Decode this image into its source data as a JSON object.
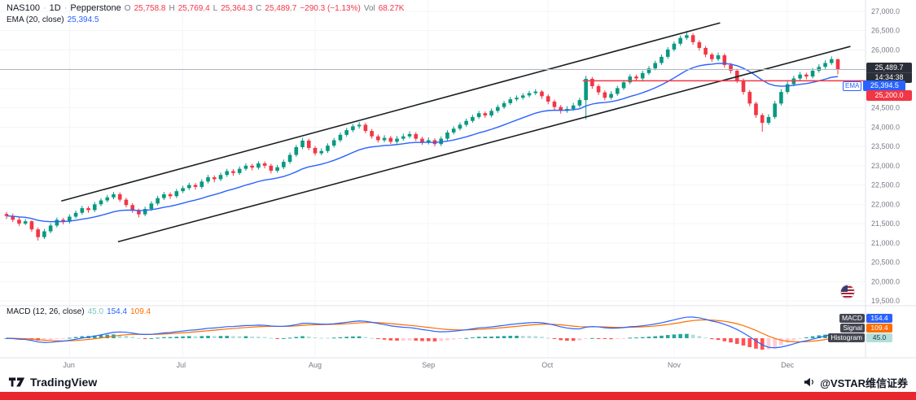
{
  "header": {
    "symbol": "NAS100",
    "sep": "·",
    "interval": "1D",
    "broker": "Pepperstone",
    "o_label": "O",
    "o": "25,758.8",
    "h_label": "H",
    "h": "25,769.4",
    "l_label": "L",
    "l": "25,364.3",
    "c_label": "C",
    "c": "25,489.7",
    "change": "−290.3 (−1.13%)",
    "vol_label": "Vol",
    "vol": "68.27K",
    "ema_label": "EMA (20, close)",
    "ema_value": "25,394.5"
  },
  "price_scale": {
    "last_price": "25,489.7",
    "countdown": "14:34:38",
    "ema_tag": "EMA",
    "ema_value": "25,394.5",
    "level": "25,200.0"
  },
  "macd_panel": {
    "title": "MACD (12, 26, close)",
    "hist_value": "45.0",
    "macd_value": "154.4",
    "signal_value": "109.4",
    "badges": {
      "macd_label": "MACD",
      "macd": "154.4",
      "signal_label": "Signal",
      "signal": "109.4",
      "hist_label": "Histogram",
      "hist": "45.0"
    }
  },
  "footer": {
    "brand": "TradingView",
    "handle": "@VSTAR维信证券"
  },
  "chart_data": {
    "type": "candlestick",
    "title": "NAS100 1D Pepperstone with EMA(20) channel and MACD(12,26,9)",
    "x_unit": "trading-day index (late May to mid December)",
    "price_range": [
      19500,
      27250
    ],
    "grid": true,
    "colors": {
      "up": "#089981",
      "down": "#f23645",
      "ema": "#2962ff",
      "hline": "#f23645",
      "macd_line": "#2962ff",
      "signal_line": "#ff6d00",
      "hist_pos_grow": "#26a69a",
      "hist_pos_fall": "#b2dfdb",
      "hist_neg_grow": "#ffcdd2",
      "hist_neg_fall": "#ff5252",
      "trendline": "#1c2022",
      "price_line": "#b2b5be"
    },
    "price_ticks": [
      {
        "value": 27000,
        "label": "27,000.0"
      },
      {
        "value": 26500,
        "label": "26,500.0"
      },
      {
        "value": 26000,
        "label": "26,000.0"
      },
      {
        "value": 25500,
        "label": "25,500.0"
      },
      {
        "value": 25000,
        "label": "25,000.0"
      },
      {
        "value": 24500,
        "label": "24,500.0"
      },
      {
        "value": 24000,
        "label": "24,000.0"
      },
      {
        "value": 23500,
        "label": "23,500.0"
      },
      {
        "value": 23000,
        "label": "23,000.0"
      },
      {
        "value": 22500,
        "label": "22,500.0"
      },
      {
        "value": 22000,
        "label": "22,000.0"
      },
      {
        "value": 21500,
        "label": "21,500.0"
      },
      {
        "value": 21000,
        "label": "21,000.0"
      },
      {
        "value": 20500,
        "label": "20,500.0"
      },
      {
        "value": 20000,
        "label": "20,000.0"
      },
      {
        "value": 19500,
        "label": "19,500.0"
      }
    ],
    "months": [
      {
        "label": "Jun",
        "index": 10
      },
      {
        "label": "Jul",
        "index": 28
      },
      {
        "label": "Aug",
        "index": 49
      },
      {
        "label": "Sep",
        "index": 67
      },
      {
        "label": "Oct",
        "index": 86
      },
      {
        "label": "Nov",
        "index": 106
      },
      {
        "label": "Dec",
        "index": 124
      }
    ],
    "ema_period": 20,
    "price_line": 25489.7,
    "hline": {
      "price": 25200,
      "from_index": 91.5
    },
    "trendlines": [
      {
        "name": "channel-upper",
        "from": {
          "index": 8.7,
          "price": 22085
        },
        "to": {
          "index": 113.3,
          "price": 26700
        }
      },
      {
        "name": "channel-lower",
        "from": {
          "index": 17.7,
          "price": 21030
        },
        "to": {
          "index": 134,
          "price": 26090
        }
      }
    ],
    "macd_params": {
      "fast": 12,
      "slow": 26,
      "signal": 9
    },
    "last_values": {
      "open": 25758.8,
      "high": 25769.4,
      "low": 25364.3,
      "close": 25489.7,
      "change": -290.3,
      "change_pct": -1.13,
      "volume": "68.27K",
      "ema20": 25394.5,
      "macd": 154.4,
      "signal": 109.4,
      "histogram": 45.0
    },
    "candles": [
      [
        21750,
        21800,
        21620,
        21700
      ],
      [
        21700,
        21760,
        21540,
        21600
      ],
      [
        21600,
        21660,
        21440,
        21500
      ],
      [
        21500,
        21620,
        21460,
        21560
      ],
      [
        21560,
        21590,
        21290,
        21350
      ],
      [
        21350,
        21400,
        21060,
        21150
      ],
      [
        21150,
        21360,
        21100,
        21300
      ],
      [
        21300,
        21510,
        21250,
        21450
      ],
      [
        21450,
        21660,
        21400,
        21600
      ],
      [
        21600,
        21650,
        21480,
        21550
      ],
      [
        21550,
        21740,
        21500,
        21680
      ],
      [
        21680,
        21840,
        21630,
        21780
      ],
      [
        21780,
        21960,
        21730,
        21900
      ],
      [
        21900,
        21950,
        21780,
        21850
      ],
      [
        21850,
        22060,
        21800,
        22000
      ],
      [
        22000,
        22160,
        21950,
        22100
      ],
      [
        22100,
        22240,
        22050,
        22180
      ],
      [
        22180,
        22320,
        22130,
        22260
      ],
      [
        22260,
        22310,
        22060,
        22120
      ],
      [
        22120,
        22170,
        21920,
        21980
      ],
      [
        21980,
        22030,
        21780,
        21840
      ],
      [
        21840,
        21890,
        21660,
        21740
      ],
      [
        21740,
        21940,
        21690,
        21880
      ],
      [
        21880,
        22080,
        21830,
        22020
      ],
      [
        22020,
        22220,
        21970,
        22160
      ],
      [
        22160,
        22320,
        22110,
        22260
      ],
      [
        22260,
        22310,
        22140,
        22210
      ],
      [
        22210,
        22400,
        22160,
        22340
      ],
      [
        22340,
        22480,
        22290,
        22420
      ],
      [
        22420,
        22560,
        22370,
        22500
      ],
      [
        22500,
        22550,
        22380,
        22450
      ],
      [
        22450,
        22650,
        22400,
        22590
      ],
      [
        22590,
        22760,
        22540,
        22700
      ],
      [
        22700,
        22750,
        22570,
        22650
      ],
      [
        22650,
        22820,
        22600,
        22760
      ],
      [
        22760,
        22920,
        22710,
        22860
      ],
      [
        22860,
        22910,
        22740,
        22810
      ],
      [
        22810,
        22980,
        22760,
        22920
      ],
      [
        22920,
        23060,
        22870,
        23000
      ],
      [
        23000,
        23050,
        22880,
        22950
      ],
      [
        22950,
        23120,
        22900,
        23060
      ],
      [
        23060,
        23110,
        22930,
        23000
      ],
      [
        23000,
        23050,
        22800,
        22870
      ],
      [
        22870,
        23020,
        22820,
        22960
      ],
      [
        22960,
        23160,
        22910,
        23100
      ],
      [
        23100,
        23340,
        23050,
        23280
      ],
      [
        23280,
        23540,
        23230,
        23480
      ],
      [
        23480,
        23720,
        23430,
        23650
      ],
      [
        23650,
        23700,
        23400,
        23460
      ],
      [
        23460,
        23510,
        23260,
        23320
      ],
      [
        23320,
        23450,
        23270,
        23380
      ],
      [
        23380,
        23580,
        23330,
        23520
      ],
      [
        23520,
        23720,
        23470,
        23660
      ],
      [
        23660,
        23860,
        23610,
        23800
      ],
      [
        23800,
        23980,
        23750,
        23920
      ],
      [
        23920,
        24080,
        23870,
        24020
      ],
      [
        24020,
        24130,
        23960,
        24060
      ],
      [
        24060,
        24110,
        23840,
        23900
      ],
      [
        23900,
        23950,
        23700,
        23760
      ],
      [
        23760,
        23810,
        23600,
        23660
      ],
      [
        23660,
        23790,
        23610,
        23720
      ],
      [
        23720,
        23770,
        23560,
        23620
      ],
      [
        23620,
        23770,
        23570,
        23700
      ],
      [
        23700,
        23830,
        23650,
        23760
      ],
      [
        23760,
        23890,
        23710,
        23820
      ],
      [
        23820,
        23870,
        23640,
        23700
      ],
      [
        23700,
        23750,
        23540,
        23600
      ],
      [
        23600,
        23730,
        23550,
        23660
      ],
      [
        23660,
        23710,
        23500,
        23560
      ],
      [
        23560,
        23760,
        23510,
        23700
      ],
      [
        23700,
        23920,
        23650,
        23860
      ],
      [
        23860,
        24020,
        23810,
        23960
      ],
      [
        23960,
        24120,
        23910,
        24060
      ],
      [
        24060,
        24220,
        24010,
        24160
      ],
      [
        24160,
        24320,
        24110,
        24260
      ],
      [
        24260,
        24420,
        24210,
        24360
      ],
      [
        24360,
        24410,
        24240,
        24300
      ],
      [
        24300,
        24480,
        24250,
        24420
      ],
      [
        24420,
        24580,
        24370,
        24520
      ],
      [
        24520,
        24680,
        24470,
        24620
      ],
      [
        24620,
        24780,
        24570,
        24720
      ],
      [
        24720,
        24820,
        24670,
        24760
      ],
      [
        24760,
        24880,
        24710,
        24820
      ],
      [
        24820,
        24940,
        24770,
        24880
      ],
      [
        24880,
        24980,
        24830,
        24920
      ],
      [
        24920,
        24960,
        24730,
        24800
      ],
      [
        24800,
        24850,
        24590,
        24660
      ],
      [
        24660,
        24710,
        24450,
        24520
      ],
      [
        24520,
        24570,
        24350,
        24420
      ],
      [
        24420,
        24540,
        24370,
        24470
      ],
      [
        24470,
        24630,
        24420,
        24560
      ],
      [
        24560,
        24760,
        24510,
        24700
      ],
      [
        24700,
        25330,
        24200,
        25250
      ],
      [
        25250,
        25300,
        24990,
        25060
      ],
      [
        25060,
        25110,
        24830,
        24900
      ],
      [
        24900,
        24950,
        24690,
        24760
      ],
      [
        24760,
        24930,
        24710,
        24860
      ],
      [
        24860,
        25070,
        24810,
        25010
      ],
      [
        25010,
        25220,
        24960,
        25160
      ],
      [
        25160,
        25370,
        25110,
        25310
      ],
      [
        25310,
        25360,
        25190,
        25260
      ],
      [
        25260,
        25460,
        25210,
        25400
      ],
      [
        25400,
        25580,
        25350,
        25520
      ],
      [
        25520,
        25720,
        25470,
        25660
      ],
      [
        25660,
        25880,
        25610,
        25820
      ],
      [
        25820,
        26070,
        25770,
        26010
      ],
      [
        26010,
        26220,
        25960,
        26160
      ],
      [
        26160,
        26370,
        26110,
        26310
      ],
      [
        26310,
        26490,
        26260,
        26380
      ],
      [
        26380,
        26430,
        26130,
        26200
      ],
      [
        26200,
        26250,
        25980,
        26050
      ],
      [
        26050,
        26100,
        25810,
        25880
      ],
      [
        25880,
        25930,
        25690,
        25760
      ],
      [
        25760,
        25930,
        25710,
        25860
      ],
      [
        25860,
        25910,
        25540,
        25610
      ],
      [
        25610,
        25660,
        25390,
        25460
      ],
      [
        25460,
        25510,
        25140,
        25210
      ],
      [
        25210,
        25260,
        24840,
        24910
      ],
      [
        24910,
        24960,
        24540,
        24610
      ],
      [
        24610,
        24660,
        24240,
        24310
      ],
      [
        24310,
        24360,
        23880,
        24110
      ],
      [
        24110,
        24330,
        24060,
        24260
      ],
      [
        24260,
        24680,
        24210,
        24610
      ],
      [
        24610,
        24980,
        24560,
        24910
      ],
      [
        24910,
        25180,
        24860,
        25110
      ],
      [
        25110,
        25330,
        25060,
        25260
      ],
      [
        25260,
        25430,
        25210,
        25360
      ],
      [
        25360,
        25410,
        25240,
        25310
      ],
      [
        25310,
        25530,
        25260,
        25460
      ],
      [
        25460,
        25630,
        25410,
        25560
      ],
      [
        25560,
        25730,
        25510,
        25660
      ],
      [
        25660,
        25830,
        25610,
        25760
      ],
      [
        25758.8,
        25769.4,
        25364.3,
        25489.7
      ]
    ]
  }
}
